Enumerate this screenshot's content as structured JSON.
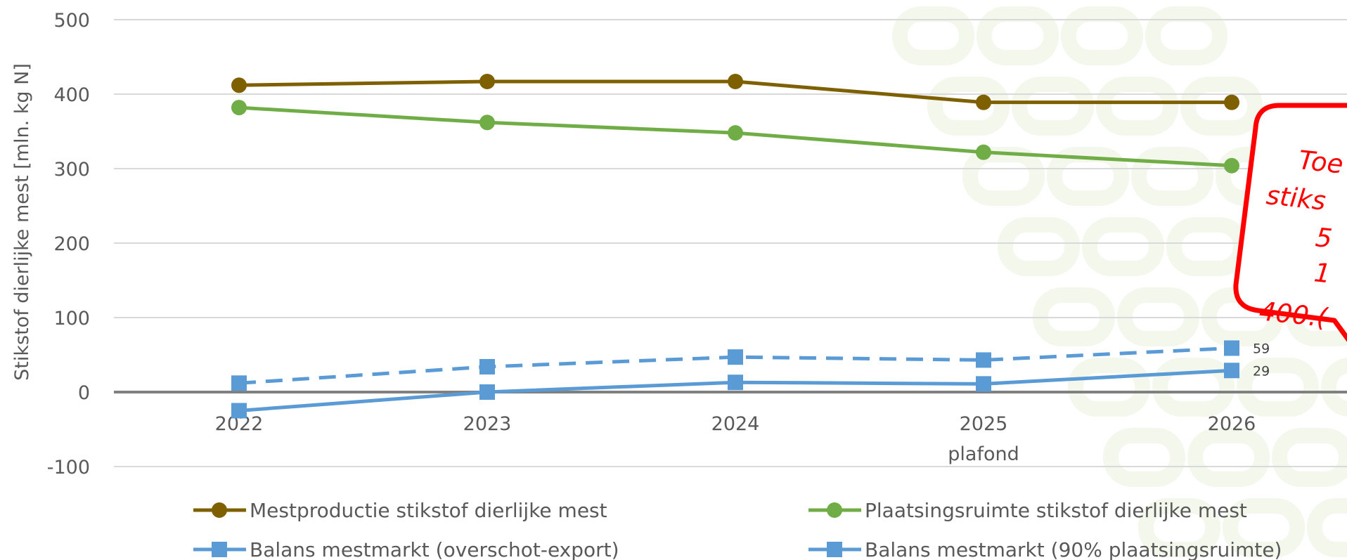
{
  "chart_data": {
    "type": "line",
    "categories": [
      "2022",
      "2023",
      "2024",
      "2025",
      "2026"
    ],
    "category_sublabels": [
      "",
      "",
      "",
      "plafond",
      ""
    ],
    "ylabel": "Stikstof dierlijke mest [mln. kg N]",
    "ylim": [
      -100,
      500
    ],
    "yticks": [
      -100,
      0,
      100,
      200,
      300,
      400,
      500
    ],
    "grid": true,
    "legend_position": "bottom",
    "series": [
      {
        "name": "Mestproductie stikstof dierlijke mest",
        "values": [
          412,
          417,
          417,
          389,
          389
        ],
        "color": "#7f6000",
        "marker": "circle",
        "dash": false
      },
      {
        "name": "Plaatsingsruimte stikstof dierlijke mest",
        "values": [
          382,
          362,
          348,
          322,
          304
        ],
        "color": "#70ad47",
        "marker": "circle",
        "dash": false
      },
      {
        "name": "Balans mestmarkt (overschot-export)",
        "values": [
          -25,
          0,
          13,
          11,
          29
        ],
        "color": "#5b9bd5",
        "marker": "square",
        "dash": false,
        "last_label": "29"
      },
      {
        "name": "Balans mestmarkt (90% plaatsingsruimte)",
        "values": [
          12,
          34,
          47,
          43,
          59
        ],
        "color": "#5b9bd5",
        "marker": "square",
        "dash": true,
        "last_label": "59"
      }
    ],
    "annotation": {
      "lines": [
        "Toe",
        "stiks",
        "5",
        "1",
        "400.("
      ],
      "color": "#ff0000"
    }
  }
}
